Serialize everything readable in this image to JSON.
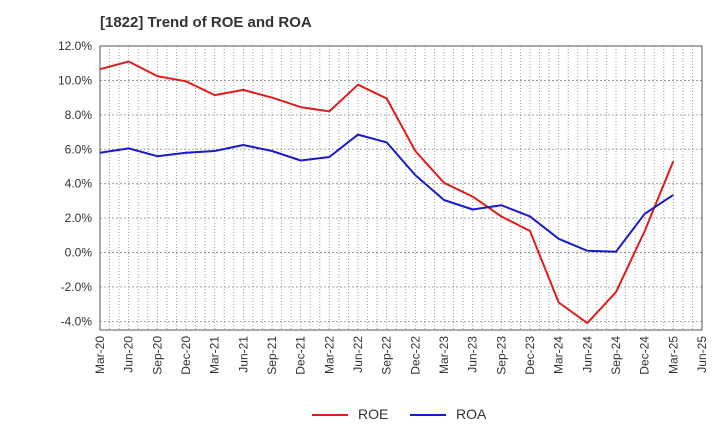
{
  "title": "[1822]  Trend of ROE and ROA",
  "colors": {
    "roe": "#e01c1c",
    "roa": "#1a1acd",
    "grid": "#8a8a8a",
    "axis": "#555555"
  },
  "legend": {
    "roe_label": "ROE",
    "roa_label": "ROA"
  },
  "chart_data": {
    "type": "line",
    "title": "[1822]  Trend of ROE and ROA",
    "xlabel": "",
    "ylabel": "",
    "x": [
      "Mar-20",
      "Jun-20",
      "Sep-20",
      "Dec-20",
      "Mar-21",
      "Jun-21",
      "Sep-21",
      "Dec-21",
      "Mar-22",
      "Jun-22",
      "Sep-22",
      "Dec-22",
      "Mar-23",
      "Jun-23",
      "Sep-23",
      "Dec-23",
      "Mar-24",
      "Jun-24",
      "Sep-24",
      "Dec-24",
      "Mar-25",
      "Jun-25"
    ],
    "ylim": [
      -4.5,
      12.0
    ],
    "yticks": [
      12.0,
      10.0,
      8.0,
      6.0,
      4.0,
      2.0,
      0.0,
      -2.0,
      -4.0
    ],
    "ytick_labels": [
      "12.0%",
      "10.0%",
      "8.0%",
      "6.0%",
      "4.0%",
      "2.0%",
      "0.0%",
      "-2.0%",
      "-4.0%"
    ],
    "grid": true,
    "legend_position": "bottom-center",
    "series": [
      {
        "name": "ROE",
        "values": [
          10.65,
          11.1,
          10.25,
          9.95,
          9.15,
          9.45,
          9.0,
          8.45,
          8.2,
          9.75,
          8.95,
          5.9,
          4.05,
          3.25,
          2.1,
          1.25,
          -2.9,
          -4.1,
          -2.3,
          1.25,
          5.3,
          null
        ]
      },
      {
        "name": "ROA",
        "values": [
          5.8,
          6.05,
          5.6,
          5.8,
          5.9,
          6.25,
          5.9,
          5.35,
          5.55,
          6.85,
          6.4,
          4.5,
          3.05,
          2.5,
          2.75,
          2.1,
          0.8,
          0.1,
          0.05,
          2.25,
          3.35,
          null
        ]
      }
    ]
  }
}
